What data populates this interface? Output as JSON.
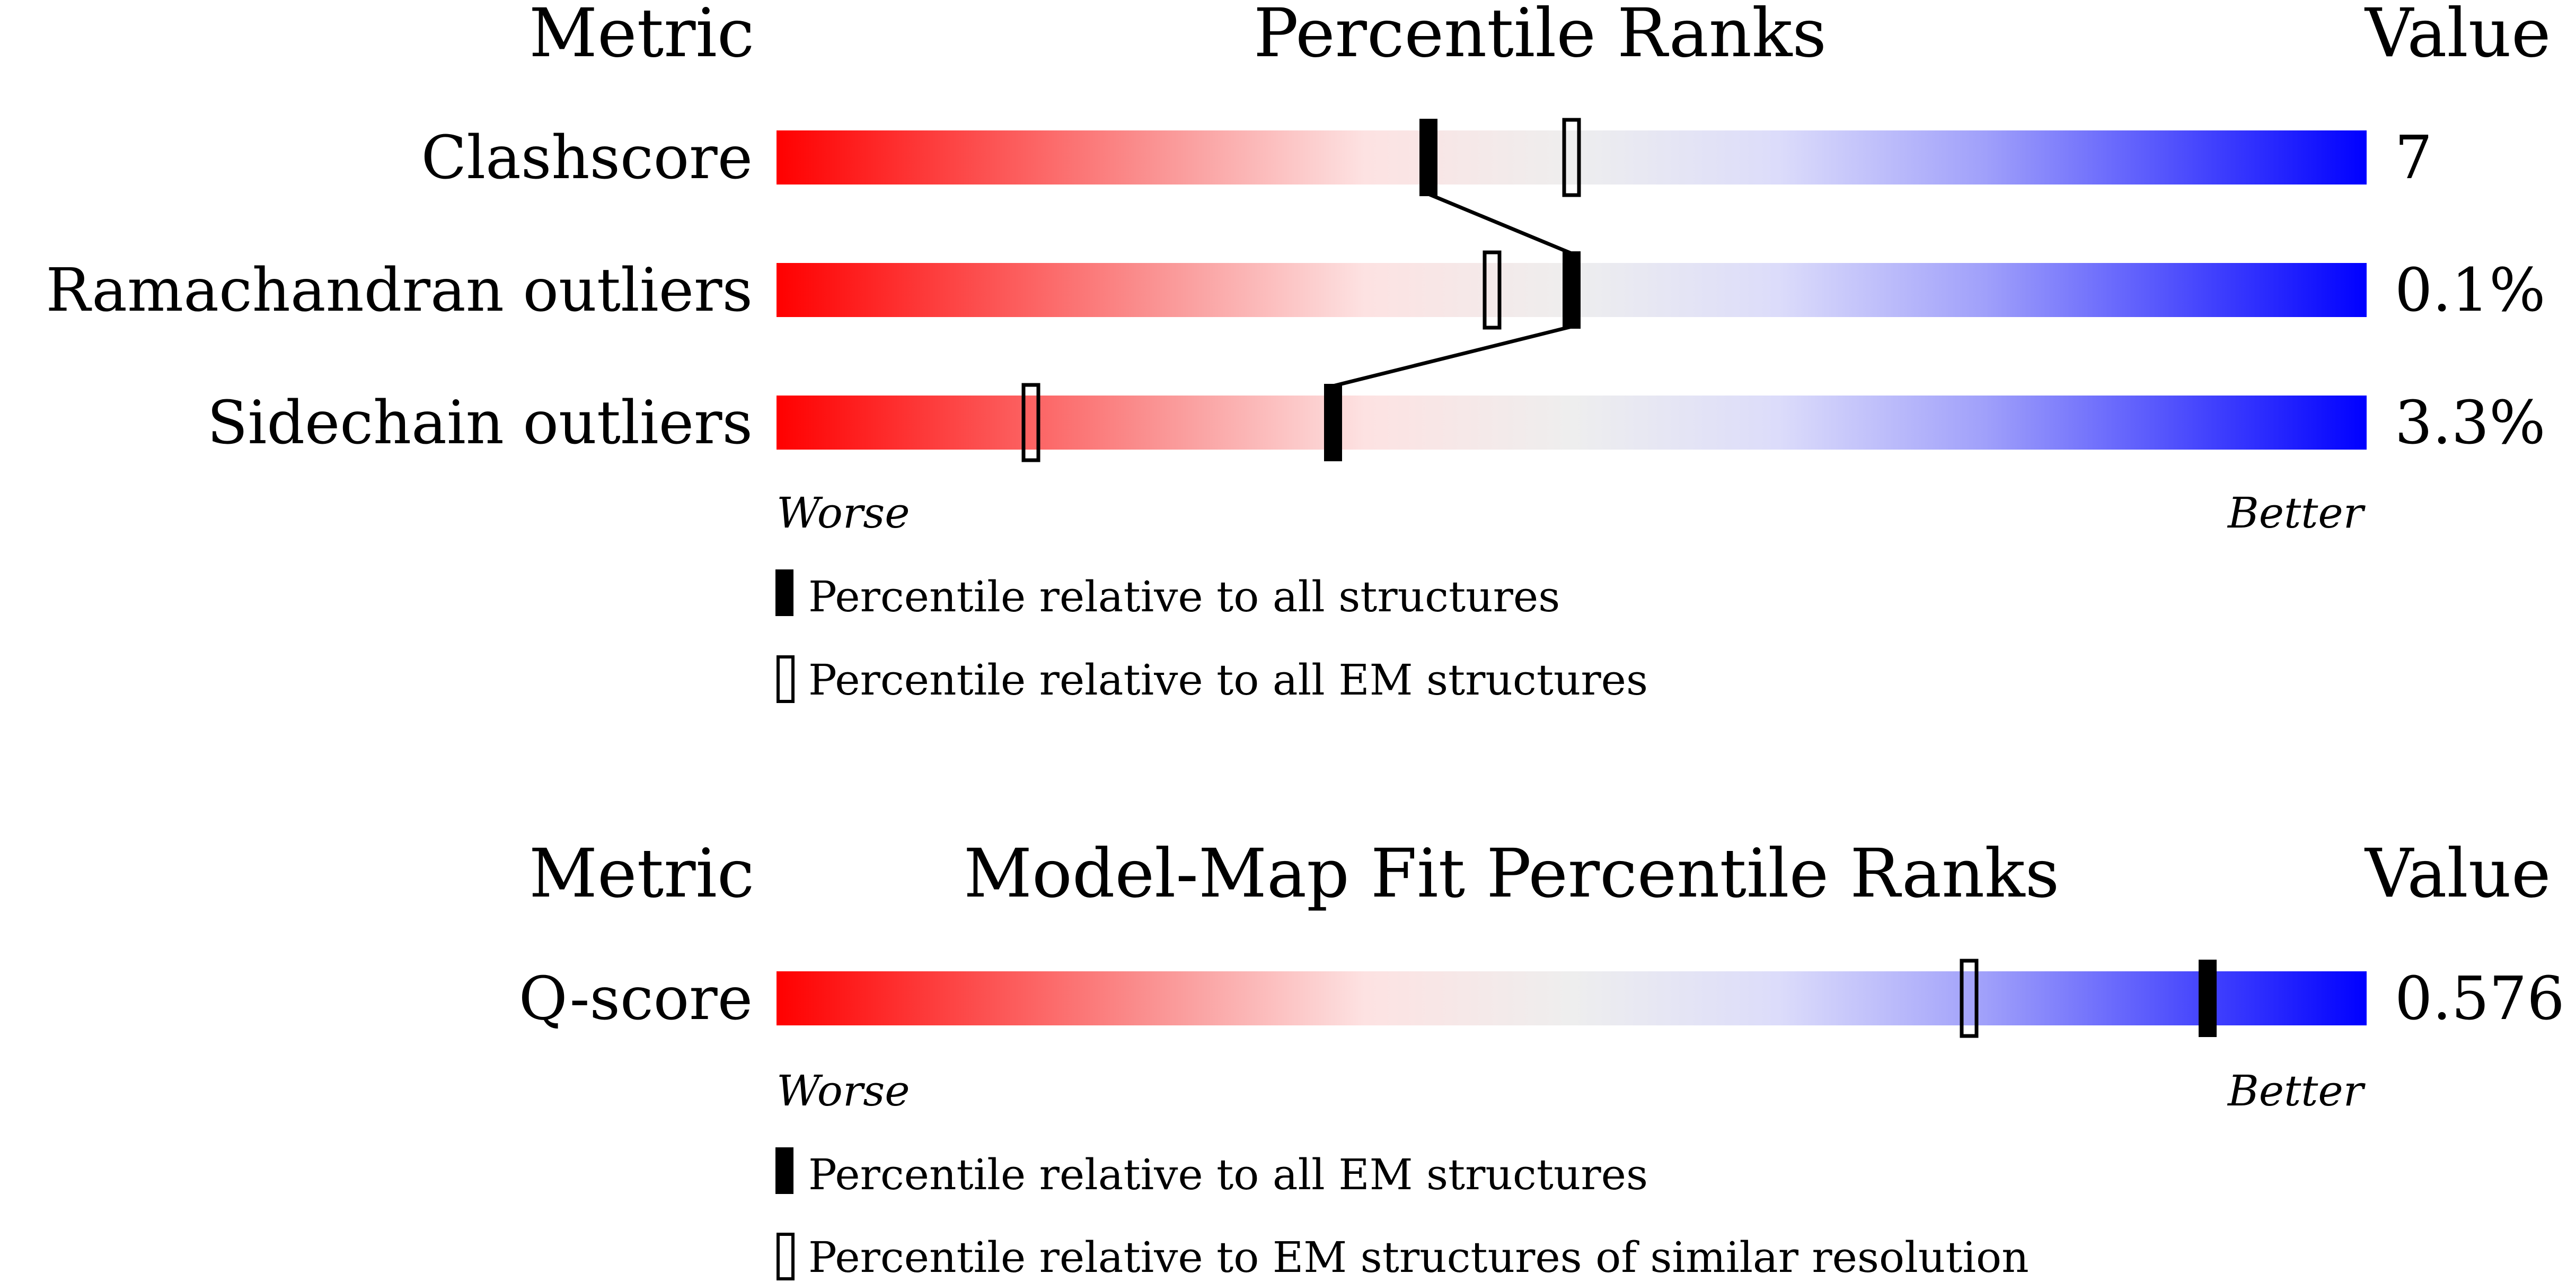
{
  "panel1": {
    "header_metric": "Metric",
    "header_title": "Percentile Ranks",
    "header_value": "Value",
    "worse_label": "Worse",
    "better_label": "Better",
    "legend_filled": "Percentile relative to all structures",
    "legend_outline": "Percentile relative to all EM structures"
  },
  "panel2": {
    "header_metric": "Metric",
    "header_title": "Model-Map Fit Percentile Ranks",
    "header_value": "Value",
    "worse_label": "Worse",
    "better_label": "Better",
    "legend_filled": "Percentile relative to all EM structures",
    "legend_outline": "Percentile relative to EM structures of similar resolution"
  },
  "chart_data": [
    {
      "type": "bar",
      "title": "Percentile Ranks",
      "categories": [
        "Clashscore",
        "Ramachandran outliers",
        "Sidechain outliers"
      ],
      "values_display": [
        "7",
        "0.1%",
        "3.3%"
      ],
      "series": [
        {
          "name": "Percentile relative to all structures",
          "marker": "filled",
          "values": [
            41,
            50,
            35
          ]
        },
        {
          "name": "Percentile relative to all EM structures",
          "marker": "outline",
          "values": [
            50,
            45,
            16
          ]
        }
      ],
      "xlim": [
        0,
        100
      ],
      "left_label": "Worse",
      "right_label": "Better",
      "colors": {
        "worse": "#ff0000",
        "middle": "#eeeeee",
        "better": "#0000ff"
      }
    },
    {
      "type": "bar",
      "title": "Model-Map Fit Percentile Ranks",
      "categories": [
        "Q-score"
      ],
      "values_display": [
        "0.576"
      ],
      "series": [
        {
          "name": "Percentile relative to all EM structures",
          "marker": "filled",
          "values": [
            90
          ]
        },
        {
          "name": "Percentile relative to EM structures of similar resolution",
          "marker": "outline",
          "values": [
            75
          ]
        }
      ],
      "xlim": [
        0,
        100
      ],
      "left_label": "Worse",
      "right_label": "Better",
      "colors": {
        "worse": "#ff0000",
        "middle": "#eeeeee",
        "better": "#0000ff"
      }
    }
  ]
}
